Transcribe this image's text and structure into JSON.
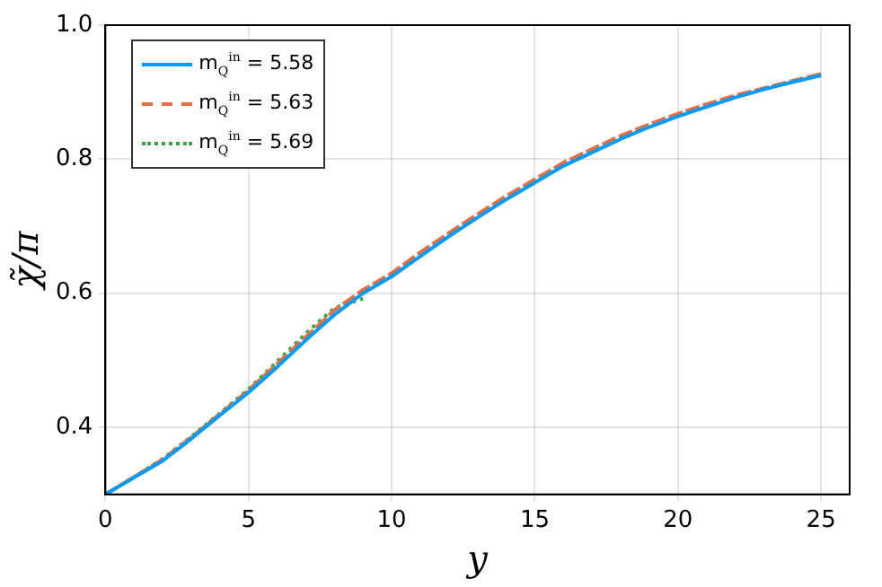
{
  "chart_data": {
    "type": "line",
    "xlabel": "y",
    "ylabel": "χ̃/π",
    "x": [
      0,
      1,
      2,
      3,
      4,
      5,
      6,
      7,
      8,
      9,
      10,
      11,
      12,
      13,
      14,
      15,
      16,
      17,
      18,
      19,
      20,
      21,
      22,
      23,
      24,
      25
    ],
    "series": [
      {
        "name": "m$_{Q}$$^{in}$ = 5.58",
        "color": "#009af9",
        "line_style": "solid",
        "values": [
          0.3,
          0.325,
          0.35,
          0.383,
          0.418,
          0.452,
          0.49,
          0.53,
          0.568,
          0.6,
          0.625,
          0.655,
          0.685,
          0.713,
          0.74,
          0.765,
          0.79,
          0.81,
          0.83,
          0.848,
          0.864,
          0.878,
          0.892,
          0.904,
          0.915,
          0.925
        ]
      },
      {
        "name": "m$_{Q}$$^{in}$ = 5.63",
        "color": "#e26f46",
        "line_style": "dashed",
        "values": [
          0.3,
          0.326,
          0.352,
          0.385,
          0.42,
          0.455,
          0.495,
          0.535,
          0.575,
          0.605,
          0.63,
          0.661,
          0.69,
          0.718,
          0.745,
          0.77,
          0.795,
          0.815,
          0.835,
          0.852,
          0.868,
          0.882,
          0.895,
          0.906,
          0.917,
          0.927
        ]
      },
      {
        "name": "m$_{Q}$$^{in}$ = 5.69",
        "color": "#3da44d",
        "line_style": "dotted",
        "x": [
          0,
          1,
          2,
          3,
          4,
          5,
          6,
          7,
          8,
          9
        ],
        "values": [
          0.3,
          0.326,
          0.353,
          0.386,
          0.421,
          0.457,
          0.498,
          0.54,
          0.578,
          0.592
        ]
      }
    ],
    "xlim": [
      0,
      26
    ],
    "xticks": [
      0,
      5,
      10,
      15,
      20,
      25
    ],
    "ylim": [
      0.3,
      1.0
    ],
    "yticks": [
      0.4,
      0.6,
      0.8,
      {
        "value": 1.0,
        "label": "1.0"
      }
    ],
    "grid": true,
    "legend": "top left"
  }
}
